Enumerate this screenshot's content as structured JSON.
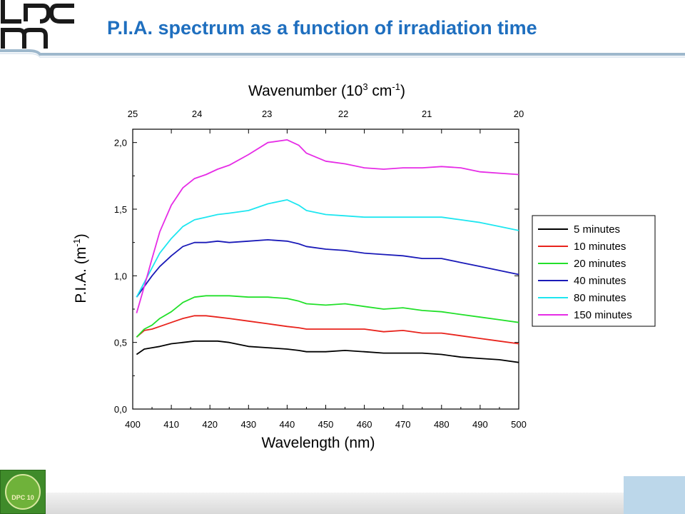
{
  "slide": {
    "title": "P.I.A. spectrum as a function of irradiation time",
    "logo_text": "lpcm",
    "emblem_text": "DPC 10"
  },
  "colors": {
    "title": "#1f6fbf",
    "series": [
      "#000000",
      "#e8231c",
      "#22e02a",
      "#1a1ab8",
      "#1ee6f0",
      "#e62ce6"
    ]
  },
  "chart_data": {
    "type": "line",
    "xlabel": "Wavelength (nm)",
    "x2label_main": "Wavenumber (10",
    "x2label_sup": "3",
    "x2label_mid": " cm",
    "x2label_sup2": "-1",
    "x2label_end": ")",
    "ylabel_main": "P.I.A. (m",
    "ylabel_sup": "-1",
    "ylabel_end": ")",
    "xlim": [
      400,
      500
    ],
    "ylim": [
      0,
      2.1
    ],
    "x_ticks": [
      400,
      410,
      420,
      430,
      440,
      450,
      460,
      470,
      480,
      490,
      500
    ],
    "x_tick_labels": [
      "400",
      "410",
      "420",
      "430",
      "440",
      "450",
      "460",
      "470",
      "480",
      "490",
      "500"
    ],
    "y_ticks": [
      0,
      0.5,
      1.0,
      1.5,
      2.0
    ],
    "y_tick_labels": [
      "0,0",
      "0,5",
      "1,0",
      "1,5",
      "2,0"
    ],
    "x2_ticks": [
      25,
      24,
      23,
      22,
      21,
      20
    ],
    "x2_tick_labels": [
      "25",
      "24",
      "23",
      "22",
      "21",
      "20"
    ],
    "grid": false,
    "legend_position": "right",
    "x": [
      401,
      403,
      405,
      407,
      410,
      413,
      416,
      419,
      422,
      425,
      430,
      435,
      440,
      443,
      445,
      450,
      455,
      460,
      465,
      470,
      475,
      480,
      485,
      490,
      495,
      500
    ],
    "series": [
      {
        "name": "5 minutes",
        "color": "#000000",
        "values": [
          0.41,
          0.45,
          0.46,
          0.47,
          0.49,
          0.5,
          0.51,
          0.51,
          0.51,
          0.5,
          0.47,
          0.46,
          0.45,
          0.44,
          0.43,
          0.43,
          0.44,
          0.43,
          0.42,
          0.42,
          0.42,
          0.41,
          0.39,
          0.38,
          0.37,
          0.35
        ]
      },
      {
        "name": "10 minutes",
        "color": "#e8231c",
        "values": [
          0.54,
          0.59,
          0.6,
          0.62,
          0.65,
          0.68,
          0.7,
          0.7,
          0.69,
          0.68,
          0.66,
          0.64,
          0.62,
          0.61,
          0.6,
          0.6,
          0.6,
          0.6,
          0.58,
          0.59,
          0.57,
          0.57,
          0.55,
          0.53,
          0.51,
          0.49
        ]
      },
      {
        "name": "20 minutes",
        "color": "#22e02a",
        "values": [
          0.54,
          0.6,
          0.63,
          0.68,
          0.73,
          0.8,
          0.84,
          0.85,
          0.85,
          0.85,
          0.84,
          0.84,
          0.83,
          0.81,
          0.79,
          0.78,
          0.79,
          0.77,
          0.75,
          0.76,
          0.74,
          0.73,
          0.71,
          0.69,
          0.67,
          0.65
        ]
      },
      {
        "name": "40 minutes",
        "color": "#1a1ab8",
        "values": [
          0.84,
          0.92,
          1.0,
          1.07,
          1.15,
          1.22,
          1.25,
          1.25,
          1.26,
          1.25,
          1.26,
          1.27,
          1.26,
          1.24,
          1.22,
          1.2,
          1.19,
          1.17,
          1.16,
          1.15,
          1.13,
          1.13,
          1.1,
          1.07,
          1.04,
          1.01
        ]
      },
      {
        "name": "80 minutes",
        "color": "#1ee6f0",
        "values": [
          0.84,
          0.95,
          1.06,
          1.17,
          1.28,
          1.37,
          1.42,
          1.44,
          1.46,
          1.47,
          1.49,
          1.54,
          1.57,
          1.53,
          1.49,
          1.46,
          1.45,
          1.44,
          1.44,
          1.44,
          1.44,
          1.44,
          1.42,
          1.4,
          1.37,
          1.34
        ]
      },
      {
        "name": "150 minutes",
        "color": "#e62ce6",
        "values": [
          0.72,
          0.92,
          1.13,
          1.33,
          1.53,
          1.66,
          1.73,
          1.76,
          1.8,
          1.83,
          1.91,
          2.0,
          2.02,
          1.98,
          1.92,
          1.86,
          1.84,
          1.81,
          1.8,
          1.81,
          1.81,
          1.82,
          1.81,
          1.78,
          1.77,
          1.76
        ]
      }
    ]
  }
}
